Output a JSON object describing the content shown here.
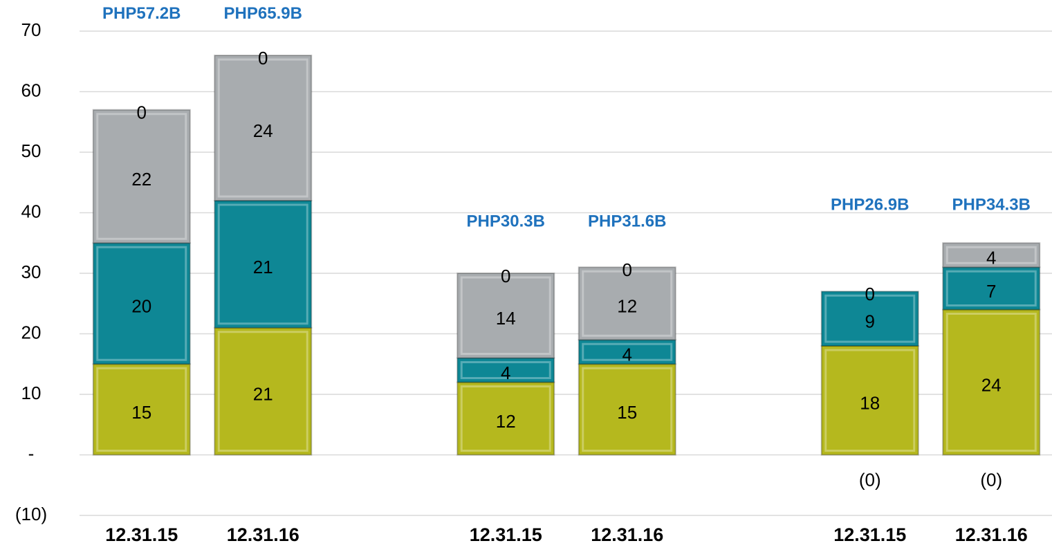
{
  "chart_data": {
    "type": "bar",
    "stacked": true,
    "categories": [
      "12.31.15",
      "12.31.16",
      null,
      "12.31.15",
      "12.31.16",
      null,
      "12.31.15",
      "12.31.16"
    ],
    "series": [
      {
        "color": "#b5b81e",
        "values": [
          15,
          21,
          null,
          12,
          15,
          null,
          18,
          24
        ]
      },
      {
        "color": "#0e8795",
        "values": [
          20,
          21,
          null,
          4,
          4,
          null,
          9,
          7
        ]
      },
      {
        "color": "#a8acaf",
        "values": [
          22,
          24,
          null,
          14,
          12,
          null,
          null,
          4
        ]
      },
      {
        "color": "#eef05a",
        "values": [
          0,
          0,
          null,
          0,
          0,
          null,
          0,
          null
        ]
      },
      {
        "color": "#eef05a",
        "values": [
          null,
          null,
          null,
          null,
          null,
          null,
          0,
          0
        ],
        "value_labels": [
          null,
          null,
          null,
          null,
          null,
          null,
          "(0)",
          "(0)"
        ]
      }
    ],
    "totals": {
      "values": [
        57.2,
        65.9,
        null,
        30.3,
        31.6,
        null,
        26.9,
        34.3
      ],
      "value_labels": [
        "PHP57.2B",
        "PHP65.9B",
        null,
        "PHP30.3B",
        "PHP31.6B",
        null,
        "PHP26.9B",
        "PHP34.3B"
      ],
      "color": "#1f72bd"
    },
    "ylim": [
      -10,
      70
    ],
    "yticks": [
      {
        "value": -10,
        "label": "(10)"
      },
      {
        "value": 0,
        "label": "-"
      },
      10,
      20,
      30,
      40,
      50,
      60,
      70
    ],
    "grid": true
  }
}
